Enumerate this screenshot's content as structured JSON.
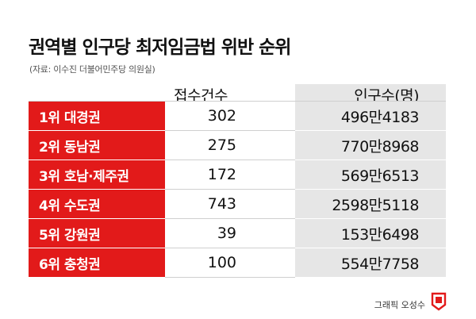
{
  "header": {
    "title": "권역별 인구당 최저임금법 위반 순위",
    "source": "(자료: 이수진 더불어민주당 의원실)"
  },
  "table": {
    "columns": [
      "접수건수(건)",
      "인구수(명)"
    ],
    "rows": [
      {
        "rank": "1위 대경권",
        "count": "302",
        "population": "496만4183"
      },
      {
        "rank": "2위 동남권",
        "count": "275",
        "population": "770만8968"
      },
      {
        "rank": "3위 호남·제주권",
        "count": "172",
        "population": "569만6513"
      },
      {
        "rank": "4위 수도권",
        "count": "743",
        "population": "2598만5118"
      },
      {
        "rank": "5위 강원권",
        "count": "39",
        "population": "153만6498"
      },
      {
        "rank": "6위 충청권",
        "count": "100",
        "population": "554만7758"
      }
    ]
  },
  "footer": {
    "credit": "그래픽 오성수",
    "logo_icon": "newspaper-logo-icon",
    "accent_color": "#e21a1a"
  }
}
